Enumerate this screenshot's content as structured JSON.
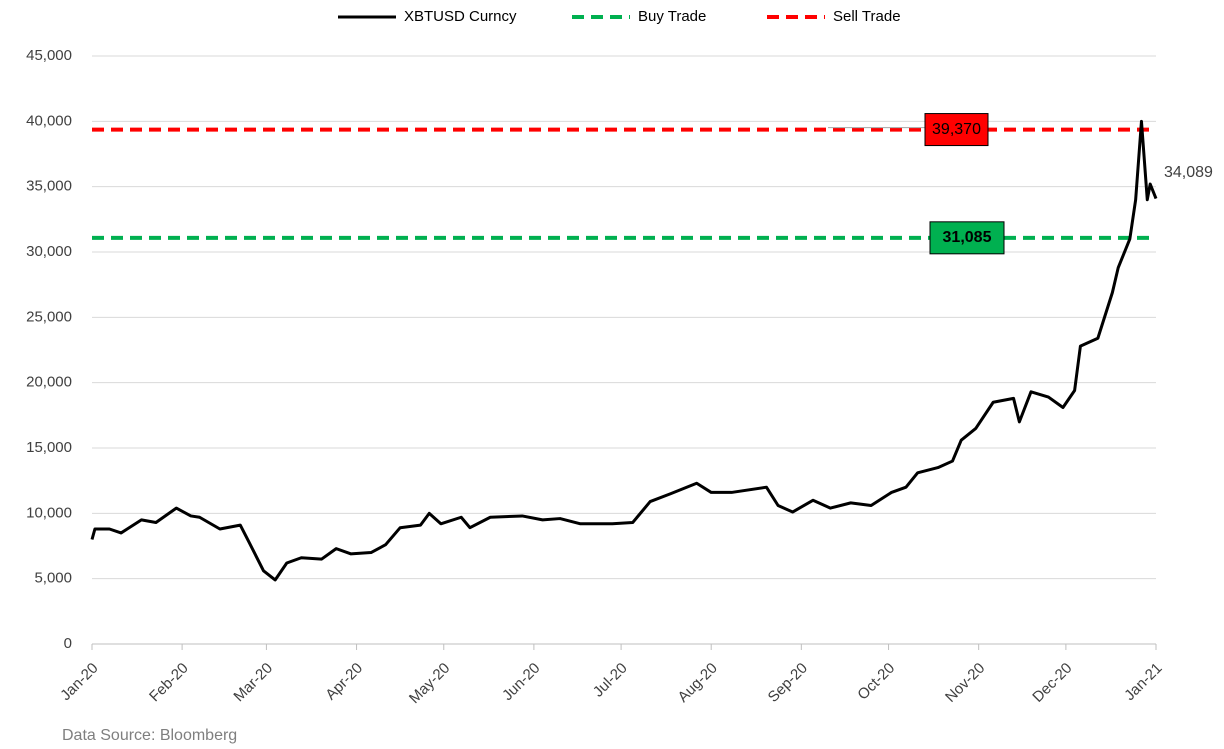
{
  "chart_data": {
    "type": "line",
    "source": "Data Source: Bloomberg",
    "x": [
      0,
      1,
      6,
      10,
      17,
      22,
      29,
      34,
      37,
      44,
      51,
      54,
      59,
      63,
      67,
      72,
      79,
      84,
      89,
      96,
      101,
      106,
      113,
      116,
      120,
      127,
      130,
      137,
      148,
      155,
      161,
      168,
      179,
      186,
      192,
      199,
      208,
      213,
      220,
      232,
      236,
      241,
      248,
      254,
      261,
      268,
      275,
      280,
      284,
      291,
      296,
      299,
      304,
      310,
      317,
      319,
      323,
      329,
      334,
      338,
      340,
      346,
      351,
      353,
      357,
      359,
      361,
      363,
      364,
      366
    ],
    "series": [
      {
        "name": "XBTUSD Curncy",
        "color": "#000000",
        "values": [
          8000,
          8800,
          8800,
          8500,
          9500,
          9300,
          10400,
          9800,
          9700,
          8800,
          9100,
          7800,
          5600,
          4900,
          6200,
          6600,
          6500,
          7300,
          6900,
          7000,
          7600,
          8900,
          9100,
          10000,
          9200,
          9700,
          8900,
          9700,
          9800,
          9500,
          9600,
          9200,
          9200,
          9300,
          10900,
          11500,
          12300,
          11600,
          11600,
          12000,
          10600,
          10100,
          11000,
          10400,
          10800,
          10600,
          11600,
          12000,
          13100,
          13500,
          14000,
          15600,
          16500,
          18500,
          18800,
          17000,
          19300,
          18900,
          18100,
          19400,
          22800,
          23400,
          26900,
          28800,
          31000,
          34000,
          40000,
          34000,
          35200,
          34089
        ],
        "last_value_label": "34,089"
      }
    ],
    "reference_lines": [
      {
        "name": "Buy Trade",
        "color": "#00b050",
        "value": 31085,
        "value_label": "31,085"
      },
      {
        "name": "Sell Trade",
        "color": "#ff0000",
        "value": 39370,
        "value_label": "39,370"
      }
    ],
    "xlim": [
      0,
      366
    ],
    "xticks": [
      {
        "value": 0,
        "label": "Jan-20"
      },
      {
        "value": 31,
        "label": "Feb-20"
      },
      {
        "value": 60,
        "label": "Mar-20"
      },
      {
        "value": 91,
        "label": "Apr-20"
      },
      {
        "value": 121,
        "label": "May-20"
      },
      {
        "value": 152,
        "label": "Jun-20"
      },
      {
        "value": 182,
        "label": "Jul-20"
      },
      {
        "value": 213,
        "label": "Aug-20"
      },
      {
        "value": 244,
        "label": "Sep-20"
      },
      {
        "value": 274,
        "label": "Oct-20"
      },
      {
        "value": 305,
        "label": "Nov-20"
      },
      {
        "value": 335,
        "label": "Dec-20"
      },
      {
        "value": 366,
        "label": "Jan-21"
      }
    ],
    "ylim": [
      0,
      45000
    ],
    "yticks": [
      0,
      {
        "value": 5000,
        "label": "5,000"
      },
      {
        "value": 10000,
        "label": "10,000"
      },
      {
        "value": 15000,
        "label": "15,000"
      },
      {
        "value": 20000,
        "label": "20,000"
      },
      {
        "value": 25000,
        "label": "25,000"
      },
      {
        "value": 30000,
        "label": "30,000"
      },
      {
        "value": 35000,
        "label": "35,000"
      },
      {
        "value": 40000,
        "label": "40,000"
      },
      {
        "value": 45000,
        "label": "45,000"
      }
    ],
    "grid": true,
    "legend": "top"
  }
}
